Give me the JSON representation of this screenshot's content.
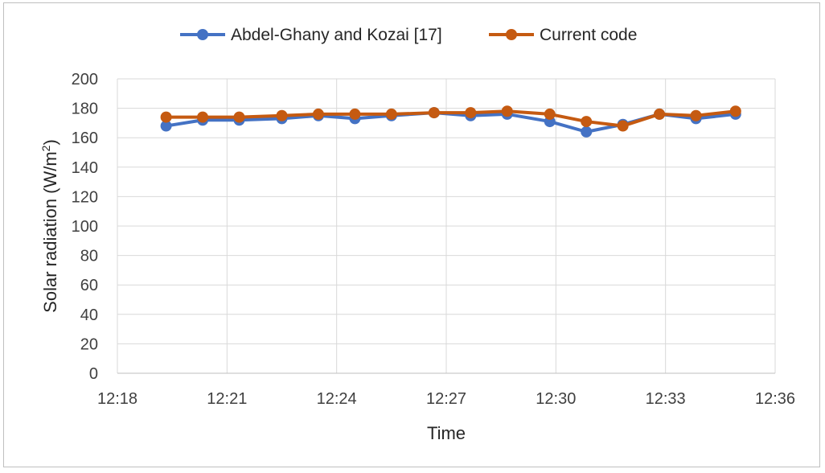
{
  "chart_data": {
    "type": "line",
    "title": "",
    "xlabel": "Time",
    "ylabel": "Solar radiation (W/m²)",
    "ylabel_parts": {
      "before": "Solar radiation (W/m",
      "sup": "2",
      "after": ")"
    },
    "ylim": [
      0,
      200
    ],
    "yticks": [
      0,
      20,
      40,
      60,
      80,
      100,
      120,
      140,
      160,
      180,
      200
    ],
    "xlim": [
      "12:18",
      "12:36"
    ],
    "xticks": [
      "12:18",
      "12:21",
      "12:24",
      "12:27",
      "12:30",
      "12:33",
      "12:36"
    ],
    "grid": true,
    "legend_position": "top",
    "x": [
      "12:19:20",
      "12:20:20",
      "12:21:20",
      "12:22:30",
      "12:23:30",
      "12:24:30",
      "12:25:30",
      "12:26:40",
      "12:27:40",
      "12:28:40",
      "12:29:50",
      "12:30:50",
      "12:31:50",
      "12:32:50",
      "12:33:50",
      "12:34:55"
    ],
    "series": [
      {
        "name": "Abdel-Ghany and Kozai [17]",
        "color": "#4472c4",
        "values": [
          168,
          172,
          172,
          173,
          175,
          173,
          175,
          177,
          175,
          176,
          171,
          164,
          169,
          176,
          173,
          176
        ]
      },
      {
        "name": "Current code",
        "color": "#c55a11",
        "values": [
          174,
          174,
          174,
          175,
          176,
          176,
          176,
          177,
          177,
          178,
          176,
          171,
          168,
          176,
          175,
          178
        ]
      }
    ]
  }
}
